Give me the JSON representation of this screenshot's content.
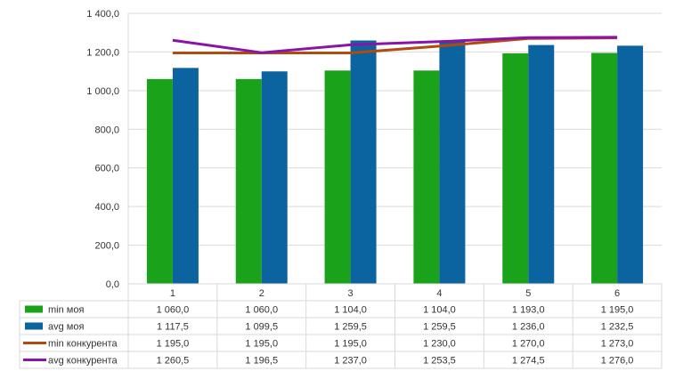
{
  "chart_data": {
    "type": "bar",
    "categories": [
      "1",
      "2",
      "3",
      "4",
      "5",
      "6"
    ],
    "ylim": [
      0,
      1400
    ],
    "yticks": [
      "0,0",
      "200,0",
      "400,0",
      "600,0",
      "800,0",
      "1 000,0",
      "1 200,0",
      "1 400,0"
    ],
    "ytick_values": [
      0,
      200,
      400,
      600,
      800,
      1000,
      1200,
      1400
    ],
    "grid": true,
    "legend_placement": "data-table-left",
    "series": [
      {
        "name": "min моя",
        "kind": "bar",
        "color": "#1aa21a",
        "values": [
          1060.0,
          1060.0,
          1104.0,
          1104.0,
          1193.0,
          1195.0
        ],
        "labels": [
          "1 060,0",
          "1 060,0",
          "1 104,0",
          "1 104,0",
          "1 193,0",
          "1 195,0"
        ]
      },
      {
        "name": "avg моя",
        "kind": "bar",
        "color": "#0b64a0",
        "values": [
          1117.5,
          1099.5,
          1259.5,
          1259.5,
          1236.0,
          1232.5
        ],
        "labels": [
          "1 117,5",
          "1 099,5",
          "1 259,5",
          "1 259,5",
          "1 236,0",
          "1 232,5"
        ]
      },
      {
        "name": "min конкурента",
        "kind": "line",
        "color": "#b24a0e",
        "values": [
          1195.0,
          1195.0,
          1195.0,
          1230.0,
          1270.0,
          1273.0
        ],
        "labels": [
          "1 195,0",
          "1 195,0",
          "1 195,0",
          "1 230,0",
          "1 270,0",
          "1 273,0"
        ]
      },
      {
        "name": "avg конкурента",
        "kind": "line",
        "color": "#8a14a8",
        "values": [
          1260.5,
          1196.5,
          1237.0,
          1253.5,
          1274.5,
          1276.0
        ],
        "labels": [
          "1 260,5",
          "1 196,5",
          "1 237,0",
          "1 253,5",
          "1 274,5",
          "1 276,0"
        ]
      }
    ]
  }
}
